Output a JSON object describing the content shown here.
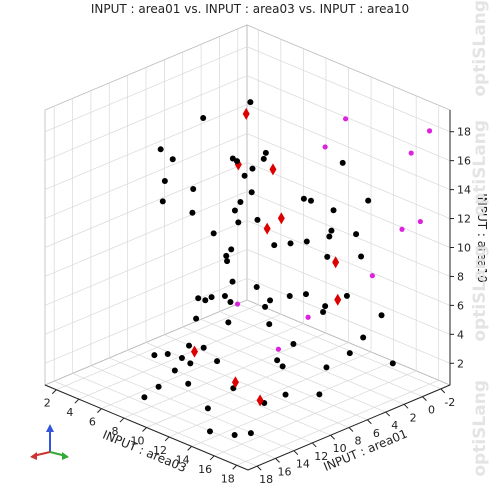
{
  "watermark": "optiSLang",
  "chart_data": {
    "type": "scatter3d",
    "title": "INPUT : area01 vs. INPUT : area03 vs. INPUT : area10",
    "xlabel": "INPUT : area03",
    "ylabel": "INPUT : area01",
    "zlabel": "INPUT : area10",
    "x_ticks": [
      2,
      4,
      6,
      8,
      10,
      12,
      14,
      16,
      18
    ],
    "y_ticks": [
      18,
      16,
      14,
      12,
      10,
      8,
      6,
      4,
      2,
      0,
      -2
    ],
    "z_ticks": [
      2,
      4,
      6,
      8,
      10,
      12,
      14,
      16,
      18
    ],
    "xlim": [
      1,
      19
    ],
    "ylim": [
      -3,
      19
    ],
    "zlim": [
      0.5,
      19.5
    ],
    "grid": true,
    "marker_colors": {
      "black": "#000000",
      "red": "#dd0000",
      "magenta": "#dd22dd"
    },
    "series": [
      {
        "marker": "circle",
        "color": "#000000",
        "points": [
          [
            3,
            1,
            12
          ],
          [
            4,
            2,
            9
          ],
          [
            5,
            3,
            13
          ],
          [
            6,
            2,
            9
          ],
          [
            7,
            4,
            18
          ],
          [
            8,
            5,
            14
          ],
          [
            9,
            5,
            15
          ],
          [
            10,
            6,
            16
          ],
          [
            4,
            6,
            4
          ],
          [
            6,
            7,
            5
          ],
          [
            8,
            8,
            6
          ],
          [
            9,
            9,
            9
          ],
          [
            10,
            9,
            12
          ],
          [
            11,
            10,
            14
          ],
          [
            12,
            10,
            15
          ],
          [
            13,
            12,
            17
          ],
          [
            5,
            12,
            2
          ],
          [
            7,
            13,
            3
          ],
          [
            9,
            13,
            3
          ],
          [
            11,
            14,
            5
          ],
          [
            13,
            15,
            5
          ],
          [
            14,
            15,
            8
          ],
          [
            15,
            16,
            10
          ],
          [
            16,
            17,
            12
          ],
          [
            11,
            1,
            4
          ],
          [
            12,
            2,
            5
          ],
          [
            13,
            3,
            9
          ],
          [
            14,
            4,
            11
          ],
          [
            15,
            5,
            12
          ],
          [
            16,
            6,
            14
          ],
          [
            10,
            7,
            7
          ],
          [
            12,
            8,
            7
          ],
          [
            14,
            11,
            8
          ],
          [
            16,
            13,
            8
          ],
          [
            15,
            3,
            3
          ],
          [
            17,
            4,
            5
          ],
          [
            17,
            8,
            4
          ],
          [
            18,
            10,
            3
          ],
          [
            16,
            9,
            9
          ],
          [
            17,
            12,
            10
          ],
          [
            13,
            14,
            12
          ],
          [
            14,
            6,
            14
          ],
          [
            8,
            15,
            18
          ],
          [
            9,
            16,
            15
          ],
          [
            10,
            17,
            17
          ],
          [
            11,
            11,
            11
          ],
          [
            12,
            12,
            2
          ],
          [
            15,
            10,
            2
          ],
          [
            18,
            14,
            6
          ],
          [
            18,
            16,
            4
          ],
          [
            13,
            16,
            2
          ],
          [
            14,
            17,
            1
          ],
          [
            16,
            15,
            1
          ],
          [
            17,
            18,
            2
          ],
          [
            18,
            2,
            3
          ],
          [
            3,
            4,
            3
          ],
          [
            2,
            3,
            15
          ],
          [
            3,
            5,
            2
          ],
          [
            4,
            7,
            1
          ],
          [
            5,
            9,
            1
          ],
          [
            6,
            11,
            1
          ],
          [
            7,
            14,
            1
          ],
          [
            8,
            12,
            1
          ],
          [
            9,
            18,
            2
          ],
          [
            10,
            3,
            2
          ],
          [
            12,
            4,
            10
          ],
          [
            13,
            7,
            11
          ],
          [
            14,
            10,
            12
          ],
          [
            15,
            8,
            15
          ],
          [
            16,
            5,
            17
          ],
          [
            18,
            6,
            13
          ],
          [
            18,
            7,
            9
          ],
          [
            17,
            2,
            6
          ],
          [
            16,
            3,
            10
          ],
          [
            15,
            1,
            13
          ],
          [
            11,
            6,
            2
          ],
          [
            7,
            8,
            10
          ],
          [
            6,
            9,
            13
          ],
          [
            5,
            10,
            15
          ],
          [
            10,
            14,
            14
          ]
        ]
      },
      {
        "marker": "diamond",
        "color": "#dd0000",
        "points": [
          [
            5,
            2,
            16
          ],
          [
            9,
            4,
            14
          ],
          [
            13,
            8,
            13
          ],
          [
            13,
            13,
            3
          ],
          [
            16,
            14,
            3
          ],
          [
            15,
            12,
            14
          ],
          [
            17,
            7,
            11
          ],
          [
            18,
            8,
            9
          ],
          [
            10,
            9,
            16
          ],
          [
            11,
            15,
            5
          ]
        ]
      },
      {
        "marker": "sphere",
        "color": "#dd22dd",
        "points": [
          [
            18,
            -2,
            18
          ],
          [
            18,
            0,
            17
          ],
          [
            18,
            -1,
            12
          ],
          [
            18,
            1,
            12
          ],
          [
            17,
            10,
            8
          ],
          [
            16,
            12,
            6
          ],
          [
            14,
            14,
            9
          ],
          [
            12,
            2,
            16
          ],
          [
            13,
            1,
            18
          ],
          [
            17,
            3,
            9
          ]
        ]
      }
    ]
  }
}
